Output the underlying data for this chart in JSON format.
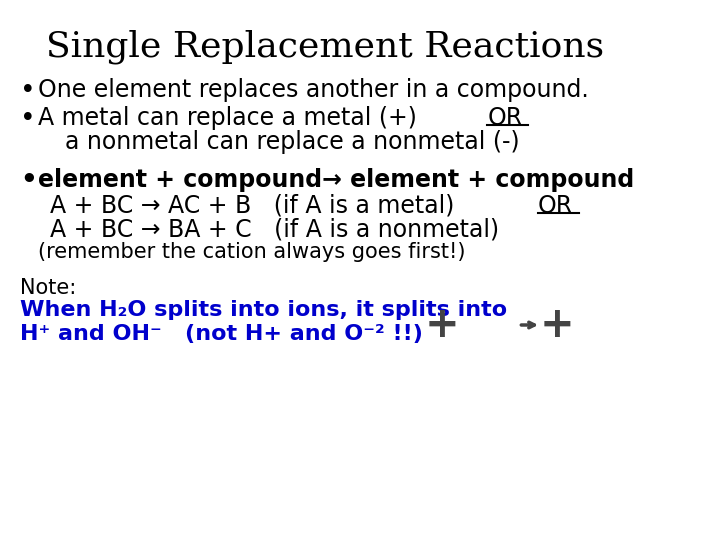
{
  "title": "Single Replacement Reactions",
  "title_fontsize": 26,
  "title_fontfamily": "serif",
  "bg_color": "#ffffff",
  "text_color": "#000000",
  "blue_color": "#0000cc",
  "bullet1": "One element replaces another in a compound.",
  "bullet2a": "A metal can replace a metal (+) ",
  "bullet2a_underline": "OR",
  "bullet2b": "  a nonmetal can replace a nonmetal (-)",
  "bullet3_bold": "element + compound→ element + compound",
  "line1": "A + BC → AC + B   (if A is a metal)  ",
  "line1_underline": "OR",
  "line2": "A + BC → BA + C   (if A is a nonmetal)",
  "line3": "(remember the cation always goes first!)",
  "note_label": "Note:",
  "note_blue1": "When H₂O splits into ions, it splits into",
  "note_blue2": "H⁺ and OH⁻   (not H+ and O⁻² !!)",
  "body_fontsize": 17,
  "note_fontsize": 15,
  "small_fontsize": 15
}
